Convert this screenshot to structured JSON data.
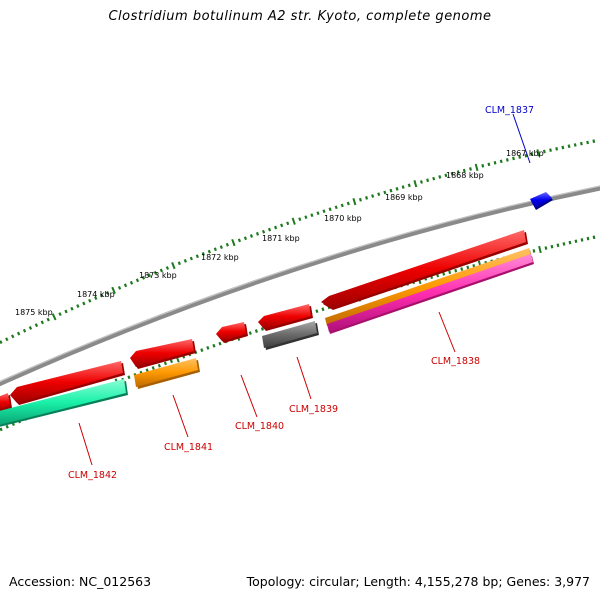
{
  "title": "Clostridium botulinum A2 str. Kyoto, complete genome",
  "footer": {
    "accession": "Accession: NC_012563",
    "topology": "Topology: circular; Length: 4,155,278 bp; Genes: 3,977"
  },
  "colors": {
    "backbone": "#8a8a8a",
    "ruler": "#1f7a1f",
    "label_forward": "#0000cc",
    "label_reverse": "#cc0000"
  },
  "ruler": [
    {
      "label": "1867 kbp"
    },
    {
      "label": "1868 kbp"
    },
    {
      "label": "1869 kbp"
    },
    {
      "label": "1870 kbp"
    },
    {
      "label": "1871 kbp"
    },
    {
      "label": "1872 kbp"
    },
    {
      "label": "1873 kbp"
    },
    {
      "label": "1874 kbp"
    },
    {
      "label": "1875 kbp"
    }
  ],
  "genes": [
    {
      "label": "CLM_1837",
      "strand": "forward",
      "color": "#0000ee"
    },
    {
      "label": "CLM_1838",
      "strand": "reverse",
      "color": "#ee0000"
    },
    {
      "label": "CLM_1839",
      "strand": "reverse",
      "color": "#ee0000"
    },
    {
      "label": "CLM_1840",
      "strand": "reverse",
      "color": "#ee0000"
    },
    {
      "label": "CLM_1841",
      "strand": "reverse",
      "color": "#ee0000"
    },
    {
      "label": "CLM_1842",
      "strand": "reverse",
      "color": "#ee0000"
    }
  ],
  "features": [
    {
      "color": "#ff9900"
    },
    {
      "color": "#ff2db0"
    },
    {
      "color": "#6b6b6b"
    },
    {
      "color": "#ff9900"
    },
    {
      "color": "#19f0a8"
    }
  ]
}
